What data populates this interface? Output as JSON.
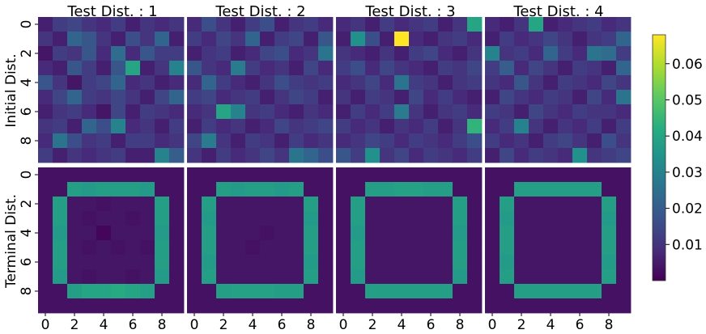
{
  "chart_data": {
    "type": "heatmap",
    "grid_size": 10,
    "colormap": "viridis",
    "colorbar": {
      "min": 0.0,
      "max": 0.068,
      "ticks": [
        0.01,
        0.02,
        0.03,
        0.04,
        0.05,
        0.06
      ],
      "tick_labels": [
        "0.01",
        "0.02",
        "0.03",
        "0.04",
        "0.05",
        "0.06"
      ]
    },
    "x_ticks": [
      "0",
      "2",
      "4",
      "6",
      "8"
    ],
    "y_ticks": [
      "0",
      "2",
      "4",
      "6",
      "8"
    ],
    "row_labels": [
      "Initial Dist.",
      "Terminal Dist."
    ],
    "column_titles": [
      "Test Dist. : 1",
      "Test Dist. : 2",
      "Test Dist. : 3",
      "Test Dist. : 4"
    ],
    "initial": [
      [
        [
          0.006,
          0.012,
          0.014,
          0.01,
          0.008,
          0.012,
          0.006,
          0.01,
          0.008,
          0.01
        ],
        [
          0.01,
          0.006,
          0.022,
          0.018,
          0.01,
          0.006,
          0.016,
          0.01,
          0.022,
          0.006
        ],
        [
          0.004,
          0.012,
          0.01,
          0.018,
          0.008,
          0.024,
          0.008,
          0.018,
          0.012,
          0.012
        ],
        [
          0.008,
          0.006,
          0.018,
          0.012,
          0.006,
          0.018,
          0.04,
          0.006,
          0.01,
          0.03
        ],
        [
          0.018,
          0.01,
          0.004,
          0.012,
          0.014,
          0.022,
          0.008,
          0.01,
          0.006,
          0.008
        ],
        [
          0.008,
          0.014,
          0.022,
          0.012,
          0.01,
          0.014,
          0.01,
          0.006,
          0.014,
          0.022
        ],
        [
          0.006,
          0.01,
          0.012,
          0.008,
          0.004,
          0.014,
          0.006,
          0.012,
          0.01,
          0.008
        ],
        [
          0.01,
          0.012,
          0.006,
          0.022,
          0.016,
          0.03,
          0.008,
          0.01,
          0.006,
          0.012
        ],
        [
          0.008,
          0.026,
          0.016,
          0.01,
          0.012,
          0.006,
          0.012,
          0.012,
          0.008,
          0.01
        ],
        [
          0.012,
          0.006,
          0.01,
          0.008,
          0.01,
          0.012,
          0.006,
          0.006,
          0.03,
          0.02
        ]
      ],
      [
        [
          0.008,
          0.016,
          0.01,
          0.006,
          0.012,
          0.016,
          0.006,
          0.01,
          0.012,
          0.008
        ],
        [
          0.012,
          0.008,
          0.014,
          0.01,
          0.022,
          0.006,
          0.012,
          0.014,
          0.006,
          0.018
        ],
        [
          0.006,
          0.01,
          0.012,
          0.006,
          0.008,
          0.014,
          0.016,
          0.008,
          0.01,
          0.026
        ],
        [
          0.018,
          0.01,
          0.008,
          0.028,
          0.012,
          0.008,
          0.01,
          0.006,
          0.014,
          0.008
        ],
        [
          0.008,
          0.022,
          0.012,
          0.008,
          0.006,
          0.01,
          0.016,
          0.012,
          0.01,
          0.012
        ],
        [
          0.012,
          0.014,
          0.008,
          0.01,
          0.012,
          0.006,
          0.01,
          0.014,
          0.012,
          0.006
        ],
        [
          0.008,
          0.01,
          0.04,
          0.03,
          0.01,
          0.012,
          0.008,
          0.006,
          0.01,
          0.008
        ],
        [
          0.006,
          0.012,
          0.008,
          0.01,
          0.006,
          0.008,
          0.014,
          0.01,
          0.012,
          0.014
        ],
        [
          0.014,
          0.028,
          0.01,
          0.006,
          0.012,
          0.01,
          0.006,
          0.012,
          0.008,
          0.01
        ],
        [
          0.01,
          0.006,
          0.012,
          0.008,
          0.01,
          0.014,
          0.01,
          0.026,
          0.022,
          0.016
        ]
      ],
      [
        [
          0.008,
          0.01,
          0.006,
          0.012,
          0.008,
          0.01,
          0.012,
          0.006,
          0.01,
          0.04
        ],
        [
          0.006,
          0.034,
          0.016,
          0.006,
          0.068,
          0.008,
          0.006,
          0.01,
          0.012,
          0.008
        ],
        [
          0.01,
          0.008,
          0.006,
          0.01,
          0.006,
          0.012,
          0.014,
          0.008,
          0.006,
          0.01
        ],
        [
          0.012,
          0.016,
          0.008,
          0.014,
          0.01,
          0.008,
          0.006,
          0.012,
          0.01,
          0.014
        ],
        [
          0.008,
          0.01,
          0.014,
          0.008,
          0.026,
          0.012,
          0.01,
          0.006,
          0.01,
          0.012
        ],
        [
          0.01,
          0.006,
          0.012,
          0.01,
          0.006,
          0.014,
          0.008,
          0.012,
          0.008,
          0.006
        ],
        [
          0.006,
          0.012,
          0.008,
          0.012,
          0.028,
          0.01,
          0.006,
          0.01,
          0.012,
          0.008
        ],
        [
          0.012,
          0.008,
          0.01,
          0.006,
          0.01,
          0.008,
          0.012,
          0.006,
          0.01,
          0.044
        ],
        [
          0.008,
          0.01,
          0.014,
          0.012,
          0.008,
          0.012,
          0.01,
          0.008,
          0.012,
          0.016
        ],
        [
          0.018,
          0.012,
          0.034,
          0.01,
          0.014,
          0.008,
          0.012,
          0.01,
          0.008,
          0.012
        ]
      ],
      [
        [
          0.008,
          0.006,
          0.01,
          0.04,
          0.006,
          0.008,
          0.01,
          0.012,
          0.008,
          0.01
        ],
        [
          0.006,
          0.012,
          0.008,
          0.01,
          0.014,
          0.01,
          0.006,
          0.01,
          0.012,
          0.022
        ],
        [
          0.03,
          0.01,
          0.012,
          0.008,
          0.022,
          0.012,
          0.008,
          0.026,
          0.024,
          0.012
        ],
        [
          0.012,
          0.02,
          0.008,
          0.014,
          0.01,
          0.006,
          0.012,
          0.01,
          0.006,
          0.022
        ],
        [
          0.01,
          0.008,
          0.018,
          0.01,
          0.006,
          0.012,
          0.01,
          0.008,
          0.014,
          0.01
        ],
        [
          0.006,
          0.014,
          0.01,
          0.008,
          0.012,
          0.01,
          0.006,
          0.014,
          0.008,
          0.026
        ],
        [
          0.012,
          0.01,
          0.006,
          0.014,
          0.01,
          0.008,
          0.012,
          0.01,
          0.01,
          0.008
        ],
        [
          0.008,
          0.012,
          0.03,
          0.01,
          0.006,
          0.01,
          0.008,
          0.012,
          0.006,
          0.012
        ],
        [
          0.012,
          0.008,
          0.01,
          0.006,
          0.012,
          0.014,
          0.01,
          0.006,
          0.016,
          0.01
        ],
        [
          0.006,
          0.014,
          0.008,
          0.012,
          0.01,
          0.008,
          0.034,
          0.01,
          0.012,
          0.014
        ]
      ]
    ],
    "terminal": [
      [
        [
          0.003,
          0.003,
          0.003,
          0.003,
          0.003,
          0.003,
          0.003,
          0.003,
          0.003,
          0.003
        ],
        [
          0.003,
          0.003,
          0.038,
          0.037,
          0.038,
          0.038,
          0.038,
          0.037,
          0.003,
          0.003
        ],
        [
          0.003,
          0.038,
          0.004,
          0.004,
          0.003,
          0.004,
          0.004,
          0.004,
          0.038,
          0.003
        ],
        [
          0.003,
          0.038,
          0.004,
          0.003,
          0.004,
          0.004,
          0.003,
          0.004,
          0.038,
          0.003
        ],
        [
          0.003,
          0.037,
          0.004,
          0.004,
          0.001,
          0.004,
          0.004,
          0.004,
          0.037,
          0.003
        ],
        [
          0.003,
          0.038,
          0.004,
          0.003,
          0.004,
          0.003,
          0.004,
          0.003,
          0.038,
          0.003
        ],
        [
          0.003,
          0.038,
          0.004,
          0.004,
          0.004,
          0.004,
          0.004,
          0.004,
          0.038,
          0.003
        ],
        [
          0.003,
          0.037,
          0.004,
          0.003,
          0.004,
          0.004,
          0.003,
          0.004,
          0.037,
          0.003
        ],
        [
          0.003,
          0.003,
          0.038,
          0.04,
          0.04,
          0.041,
          0.04,
          0.038,
          0.003,
          0.003
        ],
        [
          0.003,
          0.003,
          0.003,
          0.003,
          0.003,
          0.003,
          0.003,
          0.003,
          0.003,
          0.003
        ]
      ],
      [
        [
          0.003,
          0.003,
          0.003,
          0.003,
          0.003,
          0.003,
          0.003,
          0.003,
          0.003,
          0.003
        ],
        [
          0.003,
          0.003,
          0.038,
          0.037,
          0.038,
          0.038,
          0.037,
          0.038,
          0.003,
          0.003
        ],
        [
          0.003,
          0.038,
          0.004,
          0.004,
          0.004,
          0.004,
          0.004,
          0.004,
          0.038,
          0.003
        ],
        [
          0.003,
          0.037,
          0.004,
          0.004,
          0.004,
          0.004,
          0.004,
          0.004,
          0.037,
          0.003
        ],
        [
          0.003,
          0.038,
          0.004,
          0.004,
          0.004,
          0.003,
          0.004,
          0.004,
          0.038,
          0.003
        ],
        [
          0.003,
          0.038,
          0.004,
          0.004,
          0.003,
          0.004,
          0.004,
          0.004,
          0.038,
          0.003
        ],
        [
          0.003,
          0.037,
          0.004,
          0.004,
          0.004,
          0.004,
          0.004,
          0.004,
          0.037,
          0.003
        ],
        [
          0.003,
          0.038,
          0.004,
          0.004,
          0.004,
          0.004,
          0.004,
          0.004,
          0.038,
          0.003
        ],
        [
          0.003,
          0.003,
          0.038,
          0.039,
          0.039,
          0.039,
          0.038,
          0.038,
          0.003,
          0.003
        ],
        [
          0.003,
          0.003,
          0.003,
          0.003,
          0.003,
          0.003,
          0.003,
          0.003,
          0.003,
          0.003
        ]
      ],
      [
        [
          0.003,
          0.003,
          0.003,
          0.003,
          0.003,
          0.003,
          0.003,
          0.003,
          0.003,
          0.003
        ],
        [
          0.003,
          0.003,
          0.038,
          0.038,
          0.039,
          0.039,
          0.038,
          0.038,
          0.003,
          0.003
        ],
        [
          0.003,
          0.038,
          0.004,
          0.004,
          0.004,
          0.004,
          0.004,
          0.004,
          0.038,
          0.003
        ],
        [
          0.003,
          0.038,
          0.004,
          0.004,
          0.004,
          0.004,
          0.004,
          0.004,
          0.038,
          0.003
        ],
        [
          0.003,
          0.037,
          0.004,
          0.004,
          0.004,
          0.004,
          0.004,
          0.004,
          0.037,
          0.003
        ],
        [
          0.003,
          0.038,
          0.004,
          0.004,
          0.004,
          0.004,
          0.004,
          0.004,
          0.038,
          0.003
        ],
        [
          0.003,
          0.038,
          0.004,
          0.004,
          0.004,
          0.004,
          0.004,
          0.004,
          0.038,
          0.003
        ],
        [
          0.003,
          0.037,
          0.004,
          0.004,
          0.004,
          0.004,
          0.004,
          0.004,
          0.037,
          0.003
        ],
        [
          0.003,
          0.003,
          0.038,
          0.038,
          0.038,
          0.038,
          0.038,
          0.038,
          0.003,
          0.003
        ],
        [
          0.003,
          0.003,
          0.003,
          0.003,
          0.003,
          0.003,
          0.003,
          0.003,
          0.003,
          0.003
        ]
      ],
      [
        [
          0.003,
          0.003,
          0.003,
          0.003,
          0.003,
          0.003,
          0.003,
          0.003,
          0.003,
          0.003
        ],
        [
          0.003,
          0.003,
          0.038,
          0.038,
          0.038,
          0.038,
          0.038,
          0.038,
          0.003,
          0.003
        ],
        [
          0.003,
          0.038,
          0.004,
          0.004,
          0.004,
          0.004,
          0.004,
          0.004,
          0.038,
          0.003
        ],
        [
          0.003,
          0.037,
          0.004,
          0.004,
          0.004,
          0.004,
          0.004,
          0.004,
          0.037,
          0.003
        ],
        [
          0.003,
          0.038,
          0.004,
          0.004,
          0.004,
          0.004,
          0.004,
          0.004,
          0.038,
          0.003
        ],
        [
          0.003,
          0.038,
          0.004,
          0.004,
          0.004,
          0.004,
          0.004,
          0.004,
          0.038,
          0.003
        ],
        [
          0.003,
          0.037,
          0.004,
          0.004,
          0.004,
          0.004,
          0.004,
          0.004,
          0.037,
          0.003
        ],
        [
          0.003,
          0.038,
          0.004,
          0.004,
          0.004,
          0.004,
          0.004,
          0.004,
          0.038,
          0.003
        ],
        [
          0.003,
          0.003,
          0.038,
          0.038,
          0.038,
          0.038,
          0.038,
          0.038,
          0.003,
          0.003
        ],
        [
          0.003,
          0.003,
          0.003,
          0.003,
          0.003,
          0.003,
          0.003,
          0.003,
          0.003,
          0.003
        ]
      ]
    ]
  }
}
